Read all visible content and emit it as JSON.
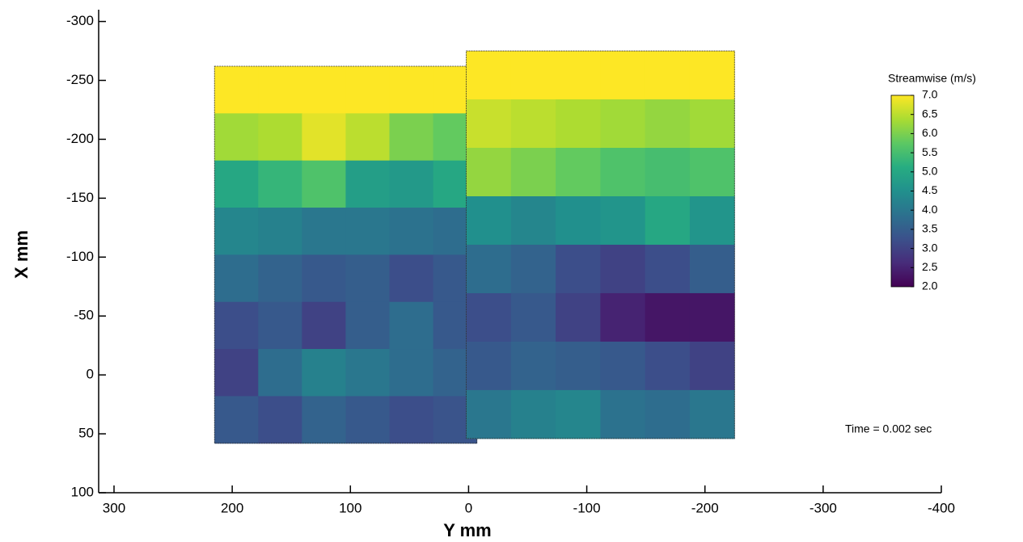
{
  "chart_data": {
    "type": "heatmap",
    "xlabel": "Y mm",
    "ylabel": "X mm",
    "xlim": [
      313,
      -400
    ],
    "xticks": [
      300,
      200,
      100,
      0,
      -100,
      -200,
      -300,
      -400
    ],
    "ylim": [
      100,
      -310
    ],
    "yticks": [
      -300,
      -250,
      -200,
      -150,
      -100,
      -50,
      0,
      50,
      100
    ],
    "panels": [
      {
        "xrange": [
          215,
          -7
        ],
        "yrange": [
          -262,
          58
        ],
        "values": [
          [
            7.0,
            7.0,
            7.0,
            7.0,
            7.0,
            7.0
          ],
          [
            6.3,
            6.4,
            6.8,
            6.5,
            6.0,
            5.8
          ],
          [
            5.0,
            5.3,
            5.6,
            4.8,
            4.7,
            5.0
          ],
          [
            4.3,
            4.2,
            4.0,
            4.0,
            3.9,
            3.8
          ],
          [
            3.8,
            3.6,
            3.4,
            3.5,
            3.2,
            3.4
          ],
          [
            3.2,
            3.4,
            3.0,
            3.5,
            3.8,
            3.4
          ],
          [
            3.0,
            3.8,
            4.2,
            4.0,
            3.8,
            3.6
          ],
          [
            3.4,
            3.2,
            3.6,
            3.4,
            3.2,
            3.3
          ]
        ]
      },
      {
        "xrange": [
          2,
          -225
        ],
        "yrange": [
          -275,
          54
        ],
        "values": [
          [
            7.0,
            7.0,
            7.0,
            7.0,
            7.0,
            7.0
          ],
          [
            6.6,
            6.5,
            6.4,
            6.3,
            6.2,
            6.3
          ],
          [
            6.2,
            6.0,
            5.8,
            5.6,
            5.5,
            5.6
          ],
          [
            4.5,
            4.3,
            4.5,
            4.6,
            5.0,
            4.6
          ],
          [
            3.8,
            3.6,
            3.2,
            3.0,
            3.2,
            3.5
          ],
          [
            3.2,
            3.4,
            3.0,
            2.5,
            2.3,
            2.3
          ],
          [
            3.4,
            3.6,
            3.5,
            3.4,
            3.2,
            3.0
          ],
          [
            4.0,
            4.2,
            4.3,
            3.9,
            3.8,
            4.0
          ]
        ]
      }
    ],
    "colorbar": {
      "title": "Streamwise (m/s)",
      "range": [
        2,
        7
      ],
      "colormap": [
        "#440154",
        "#472c7a",
        "#3b518b",
        "#2c718e",
        "#21908d",
        "#27ad81",
        "#5cc863",
        "#aadc32",
        "#fde725"
      ],
      "ticks": [
        {
          "value": 7,
          "label": "7.0"
        },
        {
          "value": 6.5,
          "label": "6.5"
        },
        {
          "value": 6,
          "label": "6.0"
        },
        {
          "value": 5.5,
          "label": "5.5"
        },
        {
          "value": 5,
          "label": "5.0"
        },
        {
          "value": 4.5,
          "label": "4.5"
        },
        {
          "value": 4,
          "label": "4.0"
        },
        {
          "value": 3.5,
          "label": "3.5"
        },
        {
          "value": 3,
          "label": "3.0"
        },
        {
          "value": 2.5,
          "label": "2.5"
        },
        {
          "value": 2,
          "label": "2.0"
        }
      ]
    },
    "annotation": "Time = 0.002 sec"
  }
}
